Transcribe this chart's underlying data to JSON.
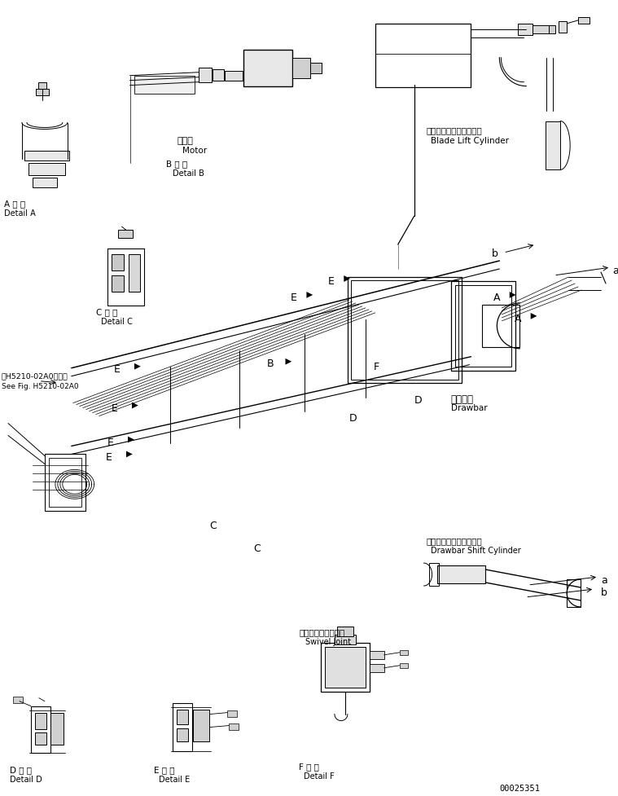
{
  "bg_color": "#ffffff",
  "fig_width": 7.59,
  "fig_height": 9.77,
  "dpi": 100,
  "part_number": "00025351",
  "labels": {
    "motor_jp": "モータ",
    "motor_en": "Motor",
    "detail_a_jp": "A 詳 細",
    "detail_a_en": "Detail A",
    "detail_b_jp": "B 詳 細",
    "detail_b_en": "Detail B",
    "detail_c_jp": "C 詳 細",
    "detail_c_en": "Detail C",
    "detail_d_jp": "D 詳 細",
    "detail_d_en": "Detail D",
    "detail_e_jp": "E 詳 細",
    "detail_e_en": "Detail E",
    "detail_f_jp": "F 詳 細",
    "detail_f_en": "Detail F",
    "blade_lift_jp": "ブレードリフトシリンダ",
    "blade_lift_en": "Blade Lift Cylinder",
    "drawbar_jp": "ドローバ",
    "drawbar_en": "Drawbar",
    "drawbar_shift_jp": "ドローバシフトシリンダ",
    "drawbar_shift_en": "Drawbar Shift Cylinder",
    "swivel_jp": "スイベルジョイント",
    "swivel_en": "Swivel Joint",
    "see_fig": "第H5210-02A0図参照",
    "see_fig2": "See Fig. H5210-02A0"
  }
}
